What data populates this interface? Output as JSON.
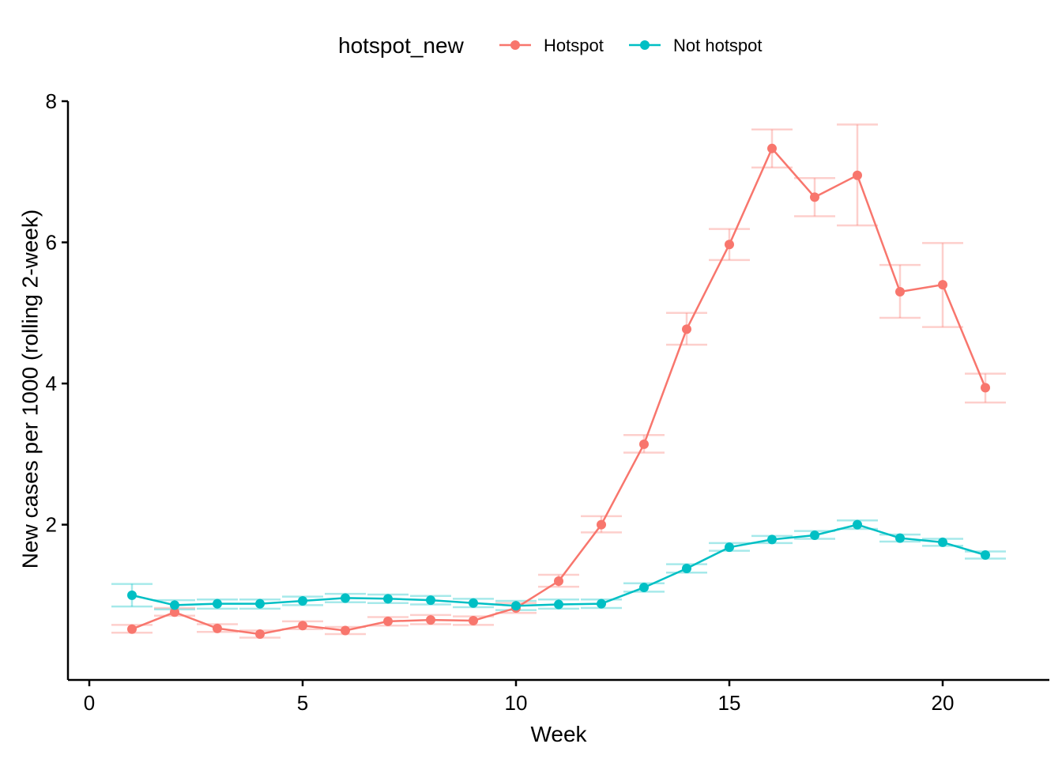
{
  "chart_data": {
    "type": "line",
    "xlabel": "Week",
    "ylabel": "New cases per 1000 (rolling 2-week)",
    "xlim": [
      -0.5,
      22.5
    ],
    "ylim": [
      -0.2,
      8
    ],
    "xticks": [
      "0",
      "5",
      "10",
      "15",
      "20"
    ],
    "yticks": [
      "2",
      "4",
      "6",
      "8"
    ],
    "grid": false,
    "legend": {
      "title": "hotspot_new",
      "position": "top",
      "entries": [
        "Hotspot",
        "Not hotspot"
      ]
    },
    "x": [
      1,
      2,
      3,
      4,
      5,
      6,
      7,
      8,
      9,
      10,
      11,
      12,
      13,
      14,
      15,
      16,
      17,
      18,
      19,
      20,
      21
    ],
    "series": [
      {
        "name": "Hotspot",
        "color": "#F8766D",
        "values": [
          0.52,
          0.76,
          0.53,
          0.45,
          0.57,
          0.5,
          0.63,
          0.65,
          0.64,
          0.82,
          1.2,
          2.0,
          3.14,
          4.77,
          5.97,
          7.33,
          6.64,
          6.95,
          5.3,
          5.4,
          3.94
        ],
        "lower": [
          0.47,
          0.71,
          0.48,
          0.4,
          0.52,
          0.45,
          0.57,
          0.59,
          0.58,
          0.75,
          1.12,
          1.89,
          3.02,
          4.55,
          5.75,
          7.06,
          6.37,
          6.24,
          4.93,
          4.8,
          3.73
        ],
        "upper": [
          0.58,
          0.82,
          0.59,
          0.5,
          0.63,
          0.55,
          0.69,
          0.72,
          0.7,
          0.89,
          1.29,
          2.12,
          3.27,
          5.0,
          6.19,
          7.6,
          6.91,
          7.67,
          5.68,
          5.99,
          4.14
        ]
      },
      {
        "name": "Not hotspot",
        "color": "#00BFC4",
        "values": [
          1.0,
          0.86,
          0.88,
          0.88,
          0.92,
          0.96,
          0.95,
          0.93,
          0.89,
          0.85,
          0.87,
          0.88,
          1.11,
          1.38,
          1.68,
          1.79,
          1.85,
          2.0,
          1.81,
          1.75,
          1.57
        ],
        "lower": [
          0.84,
          0.8,
          0.81,
          0.81,
          0.86,
          0.9,
          0.89,
          0.87,
          0.83,
          0.79,
          0.81,
          0.82,
          1.05,
          1.32,
          1.63,
          1.74,
          1.8,
          1.94,
          1.76,
          1.7,
          1.52
        ],
        "upper": [
          1.16,
          0.93,
          0.94,
          0.94,
          0.98,
          1.02,
          1.01,
          0.99,
          0.95,
          0.92,
          0.94,
          0.94,
          1.17,
          1.44,
          1.74,
          1.84,
          1.91,
          2.06,
          1.86,
          1.8,
          1.62
        ]
      }
    ]
  }
}
